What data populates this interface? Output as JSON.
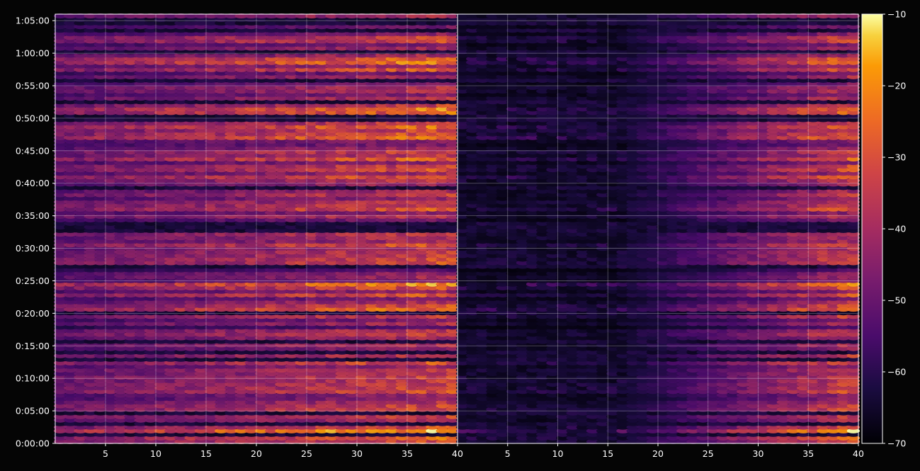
{
  "colors": {
    "background": "#050505",
    "axis": "#ffffff",
    "grid": "#ffffff",
    "colormap": "inferno"
  },
  "chart_data": [
    {
      "type": "heatmap",
      "name": "left-panel",
      "x_range": [
        1,
        40
      ],
      "y_range_seconds": [
        0,
        3960
      ],
      "x_ticks": [
        "5",
        "10",
        "15",
        "20",
        "25",
        "30",
        "35",
        "40"
      ],
      "x_tick_values": [
        5,
        10,
        15,
        20,
        25,
        30,
        35,
        40
      ],
      "y_ticks": [
        "0:00:00",
        "0:05:00",
        "0:10:00",
        "0:15:00",
        "0:20:00",
        "0:25:00",
        "0:30:00",
        "0:35:00",
        "0:40:00",
        "0:45:00",
        "0:50:00",
        "0:55:00",
        "1:00:00",
        "1:05:00"
      ],
      "grid": true,
      "intensity_profile": "high energy across all bins, brightest above bin 20"
    },
    {
      "type": "heatmap",
      "name": "right-panel",
      "x_range": [
        1,
        40
      ],
      "y_range_seconds": [
        0,
        3960
      ],
      "x_ticks": [
        "5",
        "10",
        "15",
        "20",
        "25",
        "30",
        "35",
        "40"
      ],
      "x_tick_values": [
        5,
        10,
        15,
        20,
        25,
        30,
        35,
        40
      ],
      "grid": true,
      "intensity_profile": "dark below bin 18, rising energy toward bin 40"
    }
  ],
  "colorbar": {
    "range": [
      -70,
      -10
    ],
    "ticks": [
      "−10",
      "−20",
      "−30",
      "−40",
      "−50",
      "−60",
      "−70"
    ],
    "tick_values": [
      -10,
      -20,
      -30,
      -40,
      -50,
      -60,
      -70
    ]
  }
}
